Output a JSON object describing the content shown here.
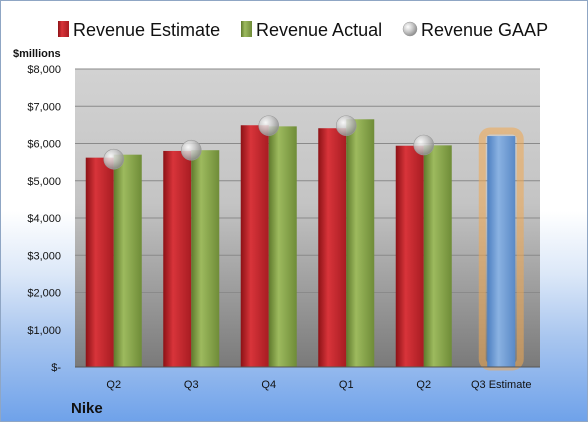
{
  "company": "Nike",
  "y_unit_label": "$millions",
  "colors": {
    "estimate": "#c0272d",
    "actual": "#86a14a",
    "gaap": "#b8b8b8",
    "forecast": "#6f9bd1",
    "forecast_glow": "#f0a850"
  },
  "chart_data": {
    "type": "bar",
    "categories": [
      "Q2",
      "Q3",
      "Q4",
      "Q1",
      "Q2",
      "Q3 Estimate"
    ],
    "series": [
      {
        "name": "Revenue Estimate",
        "values": [
          5620,
          5800,
          6490,
          6410,
          5940,
          6200
        ]
      },
      {
        "name": "Revenue Actual",
        "values": [
          5700,
          5820,
          6460,
          6650,
          5950,
          null
        ]
      },
      {
        "name": "Revenue GAAP",
        "values": [
          5580,
          5820,
          6480,
          6480,
          5960,
          null
        ]
      }
    ],
    "ylim": [
      0,
      8000
    ],
    "yticks": [
      0,
      1000,
      2000,
      3000,
      4000,
      5000,
      6000,
      7000,
      8000
    ],
    "ytick_labels": [
      "$-",
      "$1,000",
      "$2,000",
      "$3,000",
      "$4,000",
      "$5,000",
      "$6,000",
      "$7,000",
      "$8,000"
    ],
    "grid": true,
    "legend_position": "top"
  }
}
